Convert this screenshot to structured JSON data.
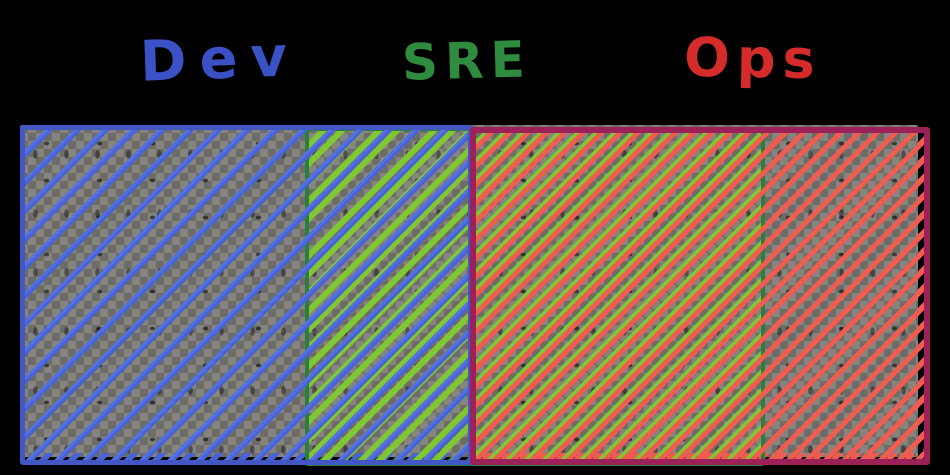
{
  "labels": {
    "dev": "Dev",
    "sre": "SRE",
    "ops": "Ops"
  },
  "colors": {
    "background": "#000000",
    "dev_text": "#3b51c6",
    "sre_text": "#2f8b3e",
    "ops_text": "#d62b2b",
    "dev_border": "#4257c4",
    "dev_hatch": "#5371e0",
    "sre_border": "#2c7e3f",
    "sre_hatch": "#7fc832",
    "ops_border": "#9c2158",
    "ops_hatch": "#f15b50",
    "checker_light": "#86847e",
    "checker_dark": "#6e6c66"
  },
  "diagram": {
    "type": "overlap-diagram",
    "sections": [
      {
        "name": "Dev",
        "fill": "blue hatch"
      },
      {
        "name": "Dev + SRE overlap",
        "fill": "blue and green hatch"
      },
      {
        "name": "SRE + Ops overlap",
        "fill": "green and red hatch"
      },
      {
        "name": "Ops",
        "fill": "red hatch"
      }
    ]
  }
}
